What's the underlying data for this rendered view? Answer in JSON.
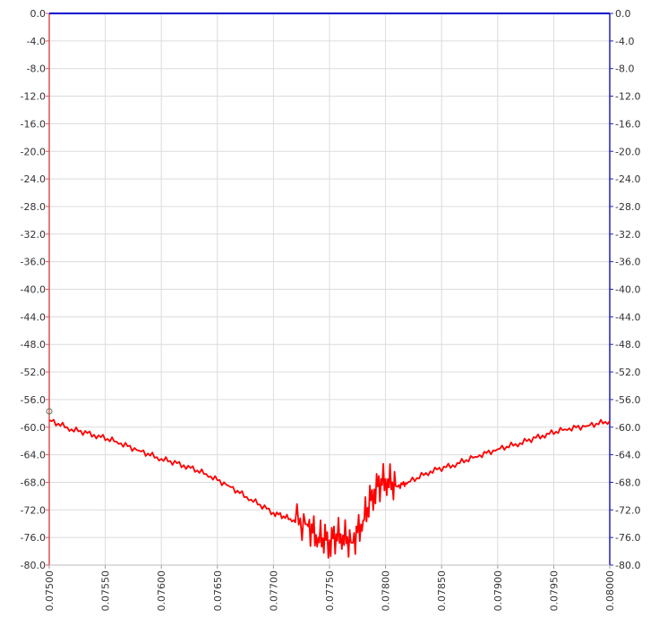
{
  "chart_data": {
    "type": "line",
    "title": "",
    "xlabel": "",
    "ylabel": "",
    "xlim": [
      0.075,
      0.08
    ],
    "ylim": [
      -80,
      0
    ],
    "grid": true,
    "x_ticks": [
      "0.07500",
      "0.07550",
      "0.07600",
      "0.07650",
      "0.07700",
      "0.07750",
      "0.07800",
      "0.07850",
      "0.07900",
      "0.07950",
      "0.08000"
    ],
    "y_ticks_left": [
      "0.0",
      "-4.0",
      "-8.0",
      "-12.0",
      "-16.0",
      "-20.0",
      "-24.0",
      "-28.0",
      "-32.0",
      "-36.0",
      "-40.0",
      "-44.0",
      "-48.0",
      "-52.0",
      "-56.0",
      "-60.0",
      "-64.0",
      "-68.0",
      "-72.0",
      "-76.0",
      "-80.0"
    ],
    "y_ticks_right": [
      "0.0",
      "-4.0",
      "-8.0",
      "-12.0",
      "-16.0",
      "-20.0",
      "-24.0",
      "-28.0",
      "-32.0",
      "-36.0",
      "-40.0",
      "-44.0",
      "-48.0",
      "-52.0",
      "-56.0",
      "-60.0",
      "-64.0",
      "-68.0",
      "-72.0",
      "-76.0",
      "-80.0"
    ],
    "colors": {
      "left_axis": "#e05050",
      "right_axis": "#2020b0",
      "grid": "#dcdcdc",
      "series_red": "#ff0000",
      "series_blue": "#0000cc"
    },
    "series": [
      {
        "color": "#0000cc",
        "x": [
          0.075,
          0.08
        ],
        "y": [
          0.0,
          0.0
        ]
      },
      {
        "color": "#ff0000",
        "x": [
          0.075,
          0.0752,
          0.0754,
          0.0756,
          0.0758,
          0.076,
          0.0762,
          0.0764,
          0.0766,
          0.0768,
          0.077,
          0.07715,
          0.0773,
          0.0774,
          0.0775,
          0.0776,
          0.0777,
          0.0778,
          0.0779,
          0.078,
          0.0781,
          0.0782,
          0.0784,
          0.0786,
          0.0788,
          0.079,
          0.0792,
          0.0794,
          0.0796,
          0.0798,
          0.08
        ],
        "y": [
          -59.0,
          -60.3,
          -61.1,
          -62.1,
          -63.4,
          -64.6,
          -65.5,
          -66.8,
          -68.5,
          -70.5,
          -72.4,
          -73.3,
          -74.1,
          -76.0,
          -76.4,
          -75.5,
          -76.8,
          -73.5,
          -69.0,
          -67.5,
          -68.6,
          -68.0,
          -66.4,
          -65.5,
          -64.3,
          -63.2,
          -62.3,
          -61.2,
          -60.3,
          -59.8,
          -59.1
        ]
      }
    ]
  }
}
